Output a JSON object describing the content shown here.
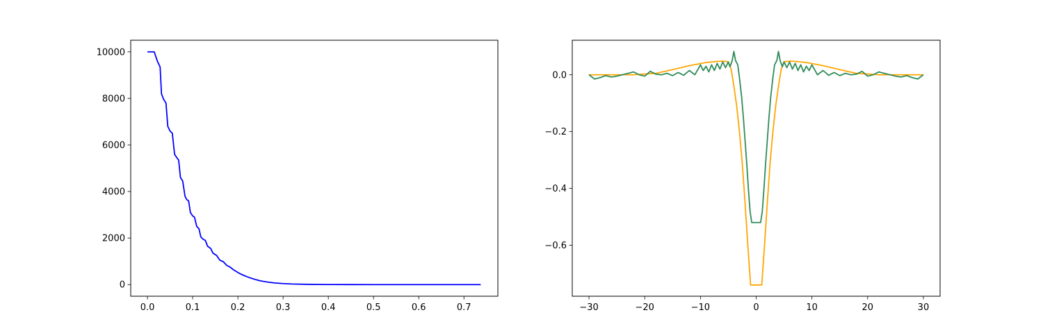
{
  "chart_data": [
    {
      "type": "line",
      "title": "",
      "xlabel": "",
      "ylabel": "",
      "xlim": [
        -0.037,
        0.775
      ],
      "ylim": [
        -500,
        10500
      ],
      "x_ticks": [
        0.0,
        0.1,
        0.2,
        0.3,
        0.4,
        0.5,
        0.6,
        0.7
      ],
      "x_tick_labels": [
        "0.0",
        "0.1",
        "0.2",
        "0.3",
        "0.4",
        "0.5",
        "0.6",
        "0.7"
      ],
      "y_ticks": [
        0,
        2000,
        4000,
        6000,
        8000,
        10000
      ],
      "y_tick_labels": [
        "0",
        "2000",
        "4000",
        "6000",
        "8000",
        "10000"
      ],
      "grid": false,
      "legend": "none",
      "series": [
        {
          "color": "#0000ff",
          "style": "solid",
          "points": [
            [
              0.0,
              10000
            ],
            [
              0.015,
              10000
            ],
            [
              0.022,
              9600
            ],
            [
              0.028,
              9350
            ],
            [
              0.031,
              8200
            ],
            [
              0.036,
              7950
            ],
            [
              0.041,
              7800
            ],
            [
              0.045,
              6800
            ],
            [
              0.05,
              6600
            ],
            [
              0.055,
              6500
            ],
            [
              0.06,
              5600
            ],
            [
              0.065,
              5450
            ],
            [
              0.069,
              5350
            ],
            [
              0.073,
              4600
            ],
            [
              0.078,
              4450
            ],
            [
              0.083,
              3800
            ],
            [
              0.087,
              3650
            ],
            [
              0.091,
              3600
            ],
            [
              0.095,
              3100
            ],
            [
              0.1,
              2950
            ],
            [
              0.104,
              2900
            ],
            [
              0.109,
              2500
            ],
            [
              0.114,
              2400
            ],
            [
              0.118,
              2050
            ],
            [
              0.123,
              1950
            ],
            [
              0.128,
              1900
            ],
            [
              0.133,
              1650
            ],
            [
              0.14,
              1550
            ],
            [
              0.145,
              1350
            ],
            [
              0.153,
              1250
            ],
            [
              0.16,
              1050
            ],
            [
              0.168,
              980
            ],
            [
              0.175,
              830
            ],
            [
              0.183,
              750
            ],
            [
              0.19,
              640
            ],
            [
              0.2,
              520
            ],
            [
              0.21,
              420
            ],
            [
              0.22,
              340
            ],
            [
              0.23,
              270
            ],
            [
              0.24,
              210
            ],
            [
              0.25,
              160
            ],
            [
              0.265,
              110
            ],
            [
              0.28,
              75
            ],
            [
              0.3,
              45
            ],
            [
              0.32,
              25
            ],
            [
              0.35,
              12
            ],
            [
              0.4,
              4
            ],
            [
              0.45,
              1
            ],
            [
              0.5,
              0
            ],
            [
              0.6,
              0
            ],
            [
              0.737,
              0
            ]
          ]
        }
      ]
    },
    {
      "type": "line",
      "title": "",
      "xlabel": "",
      "ylabel": "",
      "xlim": [
        -33.0,
        33.0
      ],
      "ylim": [
        -0.7795,
        0.1215
      ],
      "x_ticks": [
        -30,
        -20,
        -10,
        0,
        10,
        20,
        30
      ],
      "x_tick_labels": [
        "−30",
        "−20",
        "−10",
        "0",
        "10",
        "20",
        "30"
      ],
      "y_ticks": [
        0.0,
        -0.2,
        -0.4,
        -0.6
      ],
      "y_tick_labels": [
        "0.0",
        "−0.2",
        "−0.4",
        "−0.6"
      ],
      "grid": false,
      "legend": "none",
      "series": [
        {
          "color": "#ffa500",
          "style": "solid",
          "points": [
            [
              -30,
              0.0
            ],
            [
              -22,
              0.0
            ],
            [
              -18,
              0.005
            ],
            [
              -15,
              0.018
            ],
            [
              -12,
              0.032
            ],
            [
              -9,
              0.043
            ],
            [
              -7,
              0.047
            ],
            [
              -6,
              0.048
            ],
            [
              -5,
              0.046
            ],
            [
              -4.5,
              0.02
            ],
            [
              -4,
              -0.04
            ],
            [
              -3.5,
              -0.11
            ],
            [
              -3,
              -0.2
            ],
            [
              -2.5,
              -0.31
            ],
            [
              -2,
              -0.45
            ],
            [
              -1.5,
              -0.6
            ],
            [
              -1,
              -0.74
            ],
            [
              1,
              -0.74
            ],
            [
              1.5,
              -0.6
            ],
            [
              2,
              -0.45
            ],
            [
              2.5,
              -0.31
            ],
            [
              3,
              -0.2
            ],
            [
              3.5,
              -0.11
            ],
            [
              4,
              -0.04
            ],
            [
              4.5,
              0.02
            ],
            [
              5,
              0.046
            ],
            [
              6,
              0.048
            ],
            [
              7,
              0.047
            ],
            [
              9,
              0.043
            ],
            [
              12,
              0.032
            ],
            [
              15,
              0.018
            ],
            [
              18,
              0.005
            ],
            [
              22,
              0.0
            ],
            [
              30,
              0.0
            ]
          ]
        },
        {
          "color": "#2e8b57",
          "style": "solid",
          "points": [
            [
              -30,
              0.0
            ],
            [
              -29,
              -0.015
            ],
            [
              -28,
              -0.01
            ],
            [
              -27,
              -0.003
            ],
            [
              -26,
              -0.008
            ],
            [
              -25,
              -0.005
            ],
            [
              -24,
              0.0
            ],
            [
              -23,
              0.005
            ],
            [
              -22,
              0.01
            ],
            [
              -21,
              0.0
            ],
            [
              -20,
              -0.005
            ],
            [
              -19,
              0.012
            ],
            [
              -18,
              0.002
            ],
            [
              -17,
              0.0
            ],
            [
              -16,
              0.005
            ],
            [
              -15,
              -0.003
            ],
            [
              -14,
              0.008
            ],
            [
              -13,
              -0.002
            ],
            [
              -12,
              0.015
            ],
            [
              -11,
              0.0
            ],
            [
              -10,
              0.035
            ],
            [
              -9.5,
              0.015
            ],
            [
              -9,
              0.03
            ],
            [
              -8.5,
              0.01
            ],
            [
              -8,
              0.035
            ],
            [
              -7.5,
              0.015
            ],
            [
              -7,
              0.04
            ],
            [
              -6.5,
              0.02
            ],
            [
              -6,
              0.045
            ],
            [
              -5.5,
              0.025
            ],
            [
              -5,
              0.045
            ],
            [
              -4.7,
              0.028
            ],
            [
              -4.3,
              0.05
            ],
            [
              -4,
              0.082
            ],
            [
              -3.7,
              0.05
            ],
            [
              -3.3,
              0.035
            ],
            [
              -3,
              -0.01
            ],
            [
              -2.6,
              -0.08
            ],
            [
              -2.3,
              -0.15
            ],
            [
              -2,
              -0.23
            ],
            [
              -1.7,
              -0.31
            ],
            [
              -1.4,
              -0.4
            ],
            [
              -1.1,
              -0.48
            ],
            [
              -0.8,
              -0.52
            ],
            [
              0.8,
              -0.52
            ],
            [
              1.1,
              -0.48
            ],
            [
              1.4,
              -0.4
            ],
            [
              1.7,
              -0.31
            ],
            [
              2,
              -0.23
            ],
            [
              2.3,
              -0.15
            ],
            [
              2.6,
              -0.08
            ],
            [
              3,
              -0.01
            ],
            [
              3.3,
              0.035
            ],
            [
              3.7,
              0.05
            ],
            [
              4,
              0.082
            ],
            [
              4.3,
              0.05
            ],
            [
              4.7,
              0.028
            ],
            [
              5,
              0.045
            ],
            [
              5.5,
              0.025
            ],
            [
              6,
              0.045
            ],
            [
              6.5,
              0.02
            ],
            [
              7,
              0.04
            ],
            [
              7.5,
              0.015
            ],
            [
              8,
              0.035
            ],
            [
              8.5,
              0.01
            ],
            [
              9,
              0.03
            ],
            [
              9.5,
              0.015
            ],
            [
              10,
              0.035
            ],
            [
              11,
              0.0
            ],
            [
              12,
              0.015
            ],
            [
              13,
              -0.002
            ],
            [
              14,
              0.008
            ],
            [
              15,
              -0.003
            ],
            [
              16,
              0.005
            ],
            [
              17,
              0.0
            ],
            [
              18,
              0.002
            ],
            [
              19,
              0.012
            ],
            [
              20,
              -0.005
            ],
            [
              21,
              0.0
            ],
            [
              22,
              0.01
            ],
            [
              23,
              0.005
            ],
            [
              24,
              0.0
            ],
            [
              25,
              -0.005
            ],
            [
              26,
              -0.008
            ],
            [
              27,
              -0.003
            ],
            [
              28,
              -0.01
            ],
            [
              29,
              -0.015
            ],
            [
              30,
              0.0
            ]
          ]
        }
      ]
    }
  ]
}
